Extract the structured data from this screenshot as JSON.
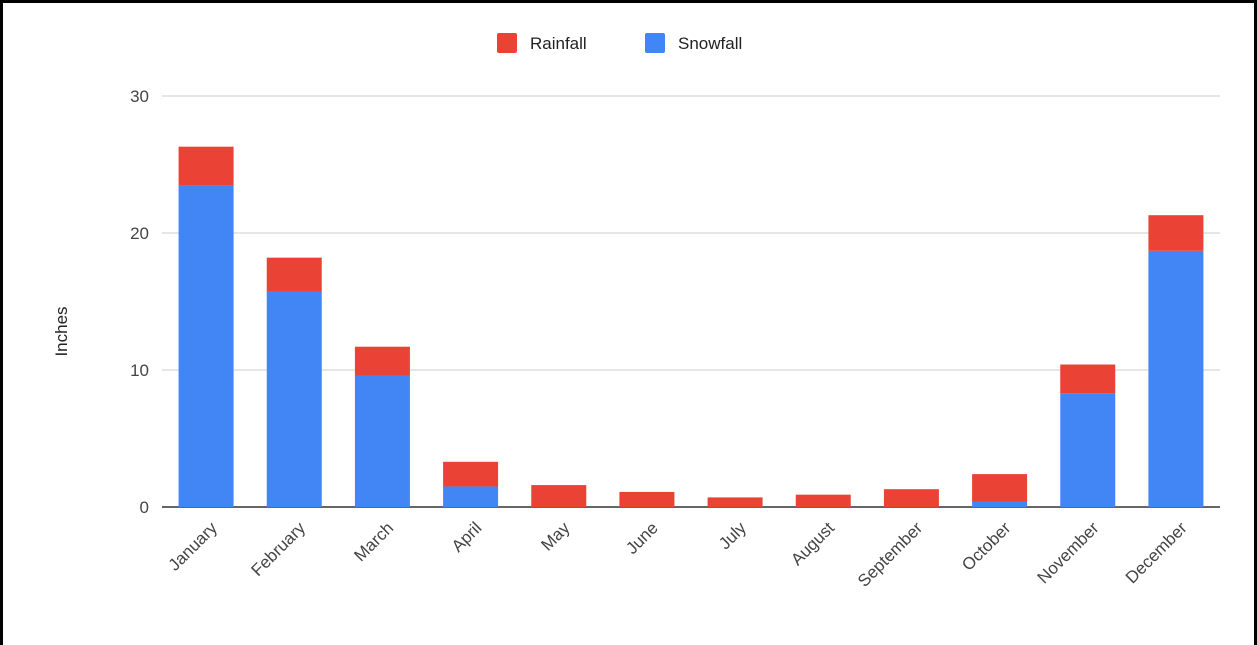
{
  "chart_data": {
    "type": "bar",
    "stacked": true,
    "title": "",
    "xlabel": "",
    "ylabel": "Inches",
    "ylim": [
      0,
      30
    ],
    "yticks": [
      0,
      10,
      20,
      30
    ],
    "grid": true,
    "legend_position": "top",
    "categories": [
      "January",
      "February",
      "March",
      "April",
      "May",
      "June",
      "July",
      "August",
      "September",
      "October",
      "November",
      "December"
    ],
    "series": [
      {
        "name": "Snowfall",
        "color": "#4285f4",
        "values": [
          23.5,
          15.7,
          9.6,
          1.5,
          0,
          0,
          0,
          0,
          0,
          0.4,
          8.3,
          18.7
        ]
      },
      {
        "name": "Rainfall",
        "color": "#ea4335",
        "values": [
          2.8,
          2.5,
          2.1,
          1.8,
          1.6,
          1.1,
          0.7,
          0.9,
          1.3,
          2.0,
          2.1,
          2.6
        ]
      }
    ]
  }
}
